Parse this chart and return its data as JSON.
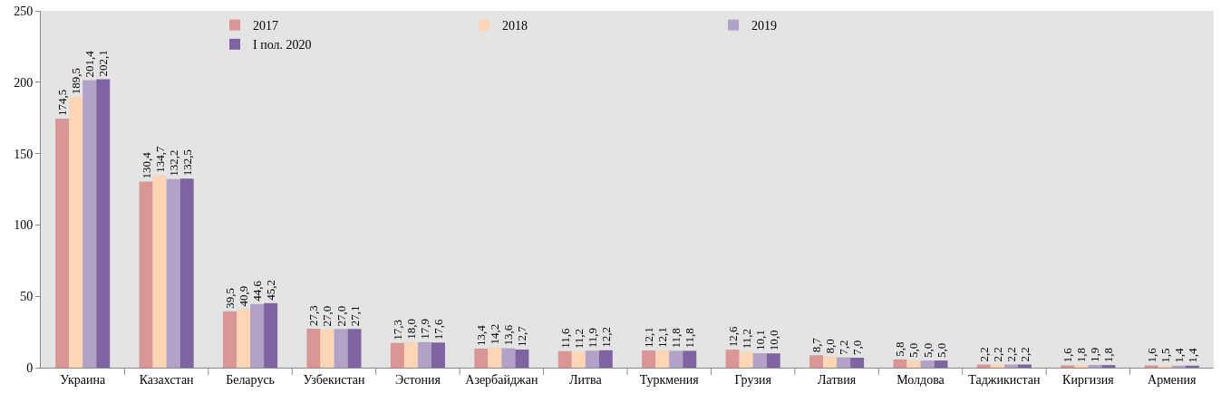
{
  "chart_data": {
    "type": "bar",
    "categories": [
      "Украина",
      "Казахстан",
      "Беларусь",
      "Узбекистан",
      "Эстония",
      "Азербайджан",
      "Литва",
      "Туркмения",
      "Грузия",
      "Латвия",
      "Молдова",
      "Таджикистан",
      "Киргизия",
      "Армения"
    ],
    "series": [
      {
        "name": "2017",
        "color": "#d99694",
        "values": [
          174.5,
          130.4,
          39.5,
          27.3,
          17.3,
          13.4,
          11.6,
          12.1,
          12.6,
          8.7,
          5.8,
          2.2,
          1.6,
          1.6
        ],
        "value_labels": [
          "174,5",
          "130,4",
          "39,5",
          "27,3",
          "17,3",
          "13,4",
          "11,6",
          "12,1",
          "12,6",
          "8,7",
          "5,8",
          "2,2",
          "1,6",
          "1,6"
        ]
      },
      {
        "name": "2018",
        "color": "#fcd5b5",
        "values": [
          189.5,
          134.7,
          40.9,
          27.0,
          18.0,
          14.2,
          11.2,
          12.1,
          11.2,
          8.0,
          5.0,
          2.2,
          1.8,
          1.5
        ],
        "value_labels": [
          "189,5",
          "134,7",
          "40,9",
          "27,0",
          "18,0",
          "14,2",
          "11,2",
          "12,1",
          "11,2",
          "8,0",
          "5,0",
          "2,2",
          "1,8",
          "1,5"
        ]
      },
      {
        "name": "2019",
        "color": "#b3a2c7",
        "values": [
          201.4,
          132.2,
          44.6,
          27.0,
          17.9,
          13.6,
          11.9,
          11.8,
          10.1,
          7.2,
          5.0,
          2.2,
          1.9,
          1.4
        ],
        "value_labels": [
          "201,4",
          "132,2",
          "44,6",
          "27,0",
          "17,9",
          "13,6",
          "11,9",
          "11,8",
          "10,1",
          "7,2",
          "5,0",
          "2,2",
          "1,9",
          "1,4"
        ]
      },
      {
        "name": "I пол. 2020",
        "color": "#8064a2",
        "values": [
          202.1,
          132.5,
          45.2,
          27.1,
          17.6,
          12.7,
          12.2,
          11.8,
          10.0,
          7.0,
          5.0,
          2.2,
          1.8,
          1.4
        ],
        "value_labels": [
          "202,1",
          "132,5",
          "45,2",
          "27,1",
          "17,6",
          "12,7",
          "12,2",
          "11,8",
          "10,0",
          "7,0",
          "5,0",
          "2,2",
          "1,8",
          "1,4"
        ]
      }
    ],
    "ylim": [
      0,
      250
    ],
    "yticks": [
      0,
      50,
      100,
      150,
      200,
      250
    ],
    "grid": false,
    "legend": "top"
  }
}
